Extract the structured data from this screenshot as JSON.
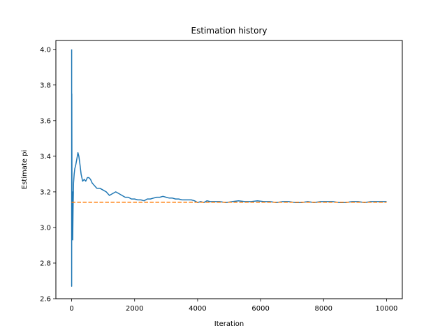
{
  "chart_data": {
    "type": "line",
    "title": "Estimation history",
    "xlabel": "Iteration",
    "ylabel": "Estimate pi",
    "xlim": [
      -500,
      10500
    ],
    "ylim": [
      2.6,
      4.05
    ],
    "xticks": [
      0,
      2000,
      4000,
      6000,
      8000,
      10000
    ],
    "xtick_labels": [
      "0",
      "2000",
      "4000",
      "6000",
      "8000",
      "10000"
    ],
    "yticks": [
      2.6,
      2.8,
      3.0,
      3.2,
      3.4,
      3.6,
      3.8,
      4.0
    ],
    "ytick_labels": [
      "2.6",
      "2.8",
      "3.0",
      "3.2",
      "3.4",
      "3.6",
      "3.8",
      "4.0"
    ],
    "grid": false,
    "series": [
      {
        "color": "#1f77b4",
        "style": "solid",
        "x": [
          1,
          2,
          3,
          5,
          8,
          12,
          18,
          25,
          35,
          45,
          60,
          80,
          100,
          130,
          160,
          200,
          230,
          260,
          300,
          350,
          400,
          450,
          500,
          550,
          600,
          650,
          700,
          800,
          900,
          1000,
          1100,
          1200,
          1300,
          1400,
          1500,
          1600,
          1700,
          1800,
          1900,
          2000,
          2100,
          2200,
          2300,
          2400,
          2500,
          2600,
          2700,
          2800,
          2900,
          3000,
          3100,
          3200,
          3300,
          3400,
          3500,
          3600,
          3700,
          3800,
          3900,
          4000,
          4100,
          4200,
          4300,
          4400,
          4500,
          4700,
          4900,
          5100,
          5300,
          5500,
          5700,
          5900,
          6100,
          6300,
          6500,
          6700,
          6900,
          7100,
          7300,
          7500,
          7700,
          7900,
          8100,
          8300,
          8500,
          8700,
          8900,
          9100,
          9300,
          9500,
          9700,
          9900,
          10000
        ],
        "y": [
          4.0,
          2.67,
          3.2,
          3.75,
          3.5,
          3.0,
          3.1,
          3.2,
          2.93,
          3.1,
          3.25,
          3.3,
          3.33,
          3.35,
          3.38,
          3.42,
          3.4,
          3.36,
          3.3,
          3.26,
          3.27,
          3.26,
          3.28,
          3.28,
          3.27,
          3.25,
          3.24,
          3.22,
          3.22,
          3.21,
          3.2,
          3.18,
          3.19,
          3.2,
          3.19,
          3.18,
          3.17,
          3.17,
          3.16,
          3.16,
          3.155,
          3.155,
          3.15,
          3.16,
          3.16,
          3.165,
          3.17,
          3.17,
          3.175,
          3.17,
          3.165,
          3.165,
          3.16,
          3.16,
          3.155,
          3.155,
          3.155,
          3.155,
          3.15,
          3.14,
          3.145,
          3.14,
          3.15,
          3.145,
          3.145,
          3.145,
          3.14,
          3.145,
          3.15,
          3.145,
          3.145,
          3.15,
          3.145,
          3.145,
          3.14,
          3.145,
          3.145,
          3.14,
          3.14,
          3.145,
          3.14,
          3.145,
          3.145,
          3.145,
          3.14,
          3.14,
          3.145,
          3.145,
          3.14,
          3.145,
          3.145,
          3.145,
          3.145
        ]
      },
      {
        "color": "#ff7f0e",
        "style": "dashed",
        "x": [
          0,
          10000
        ],
        "y": [
          3.14159,
          3.14159
        ]
      }
    ]
  }
}
